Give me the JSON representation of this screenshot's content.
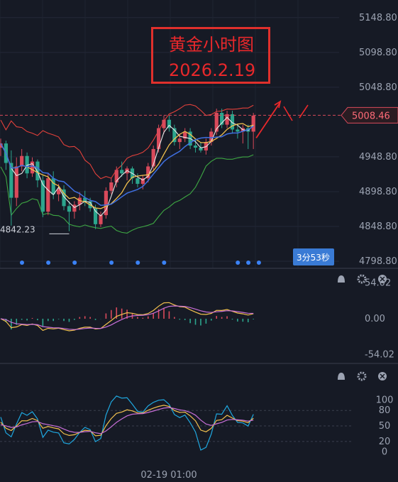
{
  "annotation": {
    "title": "黄金小时图",
    "date": "2026.2.19"
  },
  "chart_data": [
    {
      "type": "candlestick",
      "price_axis": [
        "5148.80",
        "5098.80",
        "5048.80",
        "4948.80",
        "4898.80",
        "4848.80",
        "4798.80"
      ],
      "ylim": [
        4798.8,
        5158.8
      ],
      "current_price": "5008.46",
      "countdown": "3分53秒",
      "low_label": "4842.23",
      "x_axis_label": "02-19 01:00",
      "candles": [
        [
          4962,
          4975,
          4950,
          4968
        ],
        [
          4968,
          4972,
          4930,
          4940
        ],
        [
          4940,
          4958,
          4850,
          4890
        ],
        [
          4890,
          4948,
          4878,
          4935
        ],
        [
          4935,
          4960,
          4928,
          4950
        ],
        [
          4950,
          4955,
          4918,
          4925
        ],
        [
          4925,
          4948,
          4920,
          4942
        ],
        [
          4942,
          4945,
          4905,
          4915
        ],
        [
          4915,
          4922,
          4862,
          4870
        ],
        [
          4870,
          4925,
          4865,
          4918
        ],
        [
          4918,
          4928,
          4888,
          4895
        ],
        [
          4895,
          4910,
          4885,
          4902
        ],
        [
          4902,
          4908,
          4872,
          4878
        ],
        [
          4878,
          4885,
          4842,
          4870
        ],
        [
          4870,
          4885,
          4860,
          4880
        ],
        [
          4880,
          4898,
          4872,
          4890
        ],
        [
          4890,
          4900,
          4878,
          4885
        ],
        [
          4885,
          4890,
          4870,
          4875
        ],
        [
          4875,
          4880,
          4845,
          4852
        ],
        [
          4852,
          4870,
          4848,
          4865
        ],
        [
          4865,
          4905,
          4860,
          4900
        ],
        [
          4900,
          4918,
          4895,
          4912
        ],
        [
          4912,
          4935,
          4905,
          4930
        ],
        [
          4930,
          4942,
          4920,
          4925
        ],
        [
          4925,
          4935,
          4915,
          4932
        ],
        [
          4932,
          4935,
          4910,
          4918
        ],
        [
          4918,
          4925,
          4905,
          4910
        ],
        [
          4910,
          4922,
          4902,
          4918
        ],
        [
          4918,
          4940,
          4912,
          4935
        ],
        [
          4935,
          4965,
          4930,
          4960
        ],
        [
          4960,
          4995,
          4955,
          4990
        ],
        [
          4990,
          5008,
          4982,
          5002
        ],
        [
          5002,
          5008,
          4985,
          4990
        ],
        [
          4990,
          4995,
          4965,
          4970
        ],
        [
          4970,
          4980,
          4960,
          4975
        ],
        [
          4975,
          4990,
          4970,
          4985
        ],
        [
          4985,
          4990,
          4960,
          4965
        ],
        [
          4965,
          4975,
          4955,
          4962
        ],
        [
          4962,
          4970,
          4955,
          4958
        ],
        [
          4958,
          4975,
          4952,
          4970
        ],
        [
          4970,
          4990,
          4965,
          4985
        ],
        [
          4985,
          5018,
          4980,
          5012
        ],
        [
          5012,
          5018,
          4990,
          4995
        ],
        [
          4995,
          5015,
          4990,
          5010
        ],
        [
          5010,
          5015,
          4982,
          4988
        ],
        [
          4988,
          4995,
          4975,
          4985
        ],
        [
          4985,
          4995,
          4968,
          4990
        ],
        [
          4990,
          4995,
          4960,
          4985
        ],
        [
          4985,
          5012,
          4960,
          5008
        ]
      ],
      "event_markers": [
        0,
        5,
        10,
        17,
        22,
        27,
        41,
        43,
        45
      ],
      "outlook_arrow": "up"
    },
    {
      "type": "macd",
      "ticks": [
        "54.02",
        "0.00",
        "-54.02"
      ],
      "ylim": [
        -65,
        65
      ]
    },
    {
      "type": "kdj",
      "ticks": [
        "100",
        "80",
        "50",
        "20",
        "0"
      ],
      "ylim": [
        -5,
        112
      ]
    }
  ],
  "colors": {
    "up": "#d94a5b",
    "down": "#2ca58d",
    "boll_outer": "#e3413b",
    "boll_lower": "#3ea843",
    "ma_short": "#e8e8e8",
    "ma_mid": "#f2c14e",
    "ma_long": "#3f6fe0",
    "price_line": "#d94a5b",
    "marker": "#3b82f6",
    "k_line": "#1fa8e0",
    "d_line": "#f2c14e",
    "j_line": "#c86fd8"
  },
  "icons": [
    "bell-icon",
    "gear-icon",
    "close-icon"
  ]
}
